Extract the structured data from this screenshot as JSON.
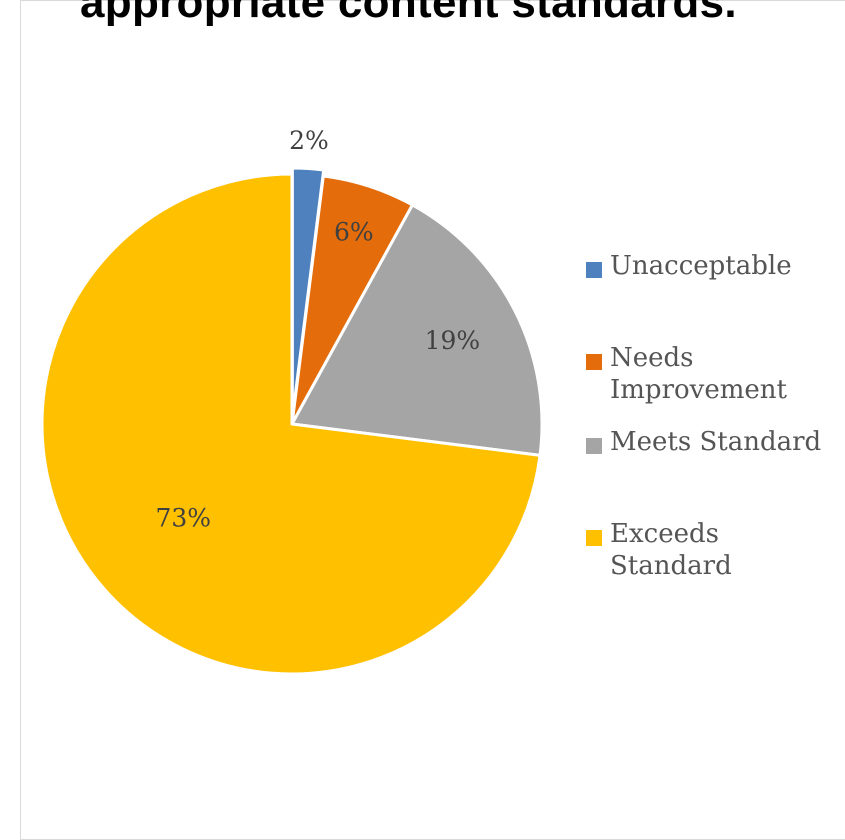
{
  "chart_data": {
    "type": "pie",
    "title": "appropriate content standards.",
    "series": [
      {
        "values": [
          2,
          6,
          19,
          73
        ],
        "labels": [
          "2%",
          "6%",
          "19%",
          "73%"
        ]
      }
    ],
    "categories": [
      "Unacceptable",
      "Needs Improvement",
      "Meets Standard",
      "Exceeds Standard"
    ],
    "colors": [
      "#4e81bd",
      "#e46c0a",
      "#a5a5a5",
      "#ffc000"
    ],
    "value_unit": "%",
    "start_angle": "12 o'clock",
    "direction": "clockwise",
    "legend_position": "right"
  }
}
